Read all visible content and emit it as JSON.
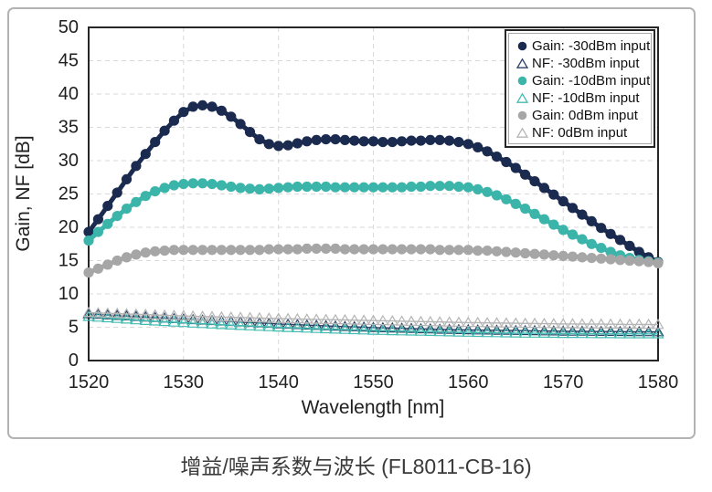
{
  "caption": "增益/噪声系数与波长 (FL8011-CB-16)",
  "chart_data": {
    "type": "line",
    "title": "",
    "xlabel": "Wavelength [nm]",
    "ylabel": "Gain, NF [dB]",
    "xlim": [
      1520,
      1580
    ],
    "ylim": [
      0,
      50
    ],
    "x_ticks": [
      1520,
      1530,
      1540,
      1550,
      1560,
      1570,
      1580
    ],
    "y_ticks": [
      0,
      5,
      10,
      15,
      20,
      25,
      30,
      35,
      40,
      45,
      50
    ],
    "grid": "dashed-both-axes",
    "legend_position": "top-right-inside",
    "x_start": 1520,
    "x_step": 1,
    "series": [
      {
        "name": "Gain: -30dBm input",
        "marker": "circle",
        "color": "#1b2b4f",
        "values": [
          19.3,
          21.2,
          23.2,
          25.2,
          27.2,
          29.2,
          31.0,
          32.8,
          34.5,
          36.0,
          37.3,
          38.1,
          38.3,
          38.1,
          37.5,
          36.6,
          35.5,
          34.3,
          33.2,
          32.5,
          32.2,
          32.3,
          32.6,
          32.9,
          33.1,
          33.2,
          33.2,
          33.1,
          33.0,
          32.9,
          32.9,
          32.8,
          32.8,
          32.9,
          33.0,
          33.0,
          33.1,
          33.1,
          33.0,
          32.8,
          32.5,
          32.0,
          31.4,
          30.6,
          29.8,
          28.9,
          27.9,
          26.9,
          25.9,
          24.9,
          23.9,
          22.9,
          21.9,
          20.9,
          19.9,
          19.0,
          18.1,
          17.2,
          16.3,
          15.5,
          14.8
        ]
      },
      {
        "name": "NF: -30dBm input",
        "marker": "triangle-open",
        "color": "#2c4265",
        "values": [
          7.0,
          6.92,
          6.84,
          6.76,
          6.68,
          6.6,
          6.52,
          6.44,
          6.36,
          6.28,
          6.2,
          6.13,
          6.06,
          5.99,
          5.92,
          5.85,
          5.78,
          5.71,
          5.64,
          5.57,
          5.5,
          5.44,
          5.38,
          5.32,
          5.26,
          5.2,
          5.15,
          5.1,
          5.05,
          5.0,
          4.95,
          4.91,
          4.87,
          4.83,
          4.79,
          4.75,
          4.72,
          4.69,
          4.66,
          4.63,
          4.6,
          4.58,
          4.56,
          4.54,
          4.52,
          4.5,
          4.48,
          4.46,
          4.44,
          4.42,
          4.4,
          4.39,
          4.38,
          4.37,
          4.36,
          4.35,
          4.34,
          4.33,
          4.32,
          4.31,
          4.3
        ]
      },
      {
        "name": "Gain: -10dBm input",
        "marker": "circle",
        "color": "#3bb4aa",
        "values": [
          18.0,
          19.3,
          20.5,
          21.7,
          22.8,
          23.8,
          24.7,
          25.4,
          25.9,
          26.3,
          26.5,
          26.6,
          26.6,
          26.5,
          26.3,
          26.1,
          25.9,
          25.8,
          25.7,
          25.8,
          25.9,
          26.0,
          26.1,
          26.1,
          26.1,
          26.1,
          26.0,
          26.0,
          26.0,
          26.0,
          26.0,
          26.0,
          26.0,
          26.0,
          26.1,
          26.1,
          26.2,
          26.2,
          26.2,
          26.1,
          26.0,
          25.7,
          25.3,
          24.8,
          24.2,
          23.5,
          22.8,
          22.0,
          21.2,
          20.4,
          19.6,
          18.9,
          18.2,
          17.5,
          16.9,
          16.3,
          15.8,
          15.4,
          15.1,
          14.9,
          14.7
        ]
      },
      {
        "name": "NF: -10dBm input",
        "marker": "triangle-open",
        "color": "#45bcb2",
        "values": [
          6.6,
          6.5,
          6.4,
          6.3,
          6.2,
          6.1,
          6.0,
          5.92,
          5.84,
          5.76,
          5.68,
          5.6,
          5.53,
          5.46,
          5.39,
          5.32,
          5.25,
          5.19,
          5.13,
          5.07,
          5.01,
          4.95,
          4.9,
          4.85,
          4.8,
          4.75,
          4.7,
          4.66,
          4.62,
          4.58,
          4.54,
          4.5,
          4.47,
          4.44,
          4.41,
          4.38,
          4.35,
          4.32,
          4.29,
          4.26,
          4.23,
          4.2,
          4.18,
          4.16,
          4.14,
          4.12,
          4.1,
          4.09,
          4.08,
          4.07,
          4.06,
          4.05,
          4.04,
          4.03,
          4.02,
          4.01,
          4.0,
          4.0,
          4.0,
          4.0,
          4.0
        ]
      },
      {
        "name": "Gain: 0dBm input",
        "marker": "circle",
        "color": "#a6a6a6",
        "values": [
          13.2,
          13.8,
          14.4,
          15.0,
          15.5,
          15.9,
          16.2,
          16.4,
          16.5,
          16.6,
          16.6,
          16.6,
          16.6,
          16.6,
          16.6,
          16.6,
          16.6,
          16.6,
          16.6,
          16.7,
          16.7,
          16.7,
          16.7,
          16.8,
          16.8,
          16.8,
          16.8,
          16.7,
          16.7,
          16.7,
          16.7,
          16.7,
          16.7,
          16.7,
          16.7,
          16.7,
          16.7,
          16.6,
          16.6,
          16.6,
          16.6,
          16.5,
          16.5,
          16.4,
          16.3,
          16.2,
          16.1,
          16.0,
          15.9,
          15.8,
          15.7,
          15.6,
          15.5,
          15.4,
          15.3,
          15.2,
          15.1,
          15.0,
          14.9,
          14.8,
          14.6
        ]
      },
      {
        "name": "NF: 0dBm input",
        "marker": "triangle-open",
        "color": "#b5b5b5",
        "values": [
          7.2,
          7.15,
          7.1,
          7.05,
          7.0,
          6.95,
          6.9,
          6.85,
          6.8,
          6.75,
          6.7,
          6.66,
          6.62,
          6.58,
          6.54,
          6.5,
          6.46,
          6.42,
          6.38,
          6.34,
          6.3,
          6.27,
          6.24,
          6.21,
          6.18,
          6.15,
          6.12,
          6.09,
          6.06,
          6.03,
          6.0,
          5.97,
          5.94,
          5.91,
          5.88,
          5.85,
          5.82,
          5.79,
          5.76,
          5.73,
          5.7,
          5.68,
          5.66,
          5.64,
          5.62,
          5.6,
          5.58,
          5.56,
          5.54,
          5.52,
          5.5,
          5.49,
          5.48,
          5.47,
          5.46,
          5.45,
          5.44,
          5.43,
          5.42,
          5.41,
          5.4
        ]
      }
    ]
  }
}
